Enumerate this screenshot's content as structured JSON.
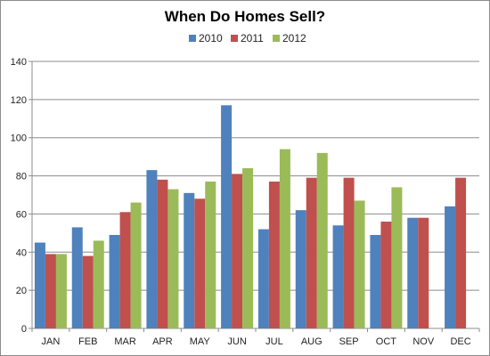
{
  "chart_data": {
    "type": "bar",
    "title": "When Do Homes Sell?",
    "xlabel": "",
    "ylabel": "",
    "categories": [
      "JAN",
      "FEB",
      "MAR",
      "APR",
      "MAY",
      "JUN",
      "JUL",
      "AUG",
      "SEP",
      "OCT",
      "NOV",
      "DEC"
    ],
    "series": [
      {
        "name": "2010",
        "color": "#4f81bd",
        "values": [
          45,
          53,
          49,
          83,
          71,
          117,
          52,
          62,
          54,
          49,
          58,
          64
        ]
      },
      {
        "name": "2011",
        "color": "#c0504d",
        "values": [
          39,
          38,
          61,
          78,
          68,
          81,
          77,
          79,
          79,
          56,
          58,
          79
        ]
      },
      {
        "name": "2012",
        "color": "#9bbb59",
        "values": [
          39,
          46,
          66,
          73,
          77,
          84,
          94,
          92,
          67,
          74,
          null,
          null
        ]
      }
    ],
    "ylim": [
      0,
      140
    ],
    "yticks": [
      0,
      20,
      40,
      60,
      80,
      100,
      120,
      140
    ],
    "grid": true,
    "legend_position": "top"
  }
}
